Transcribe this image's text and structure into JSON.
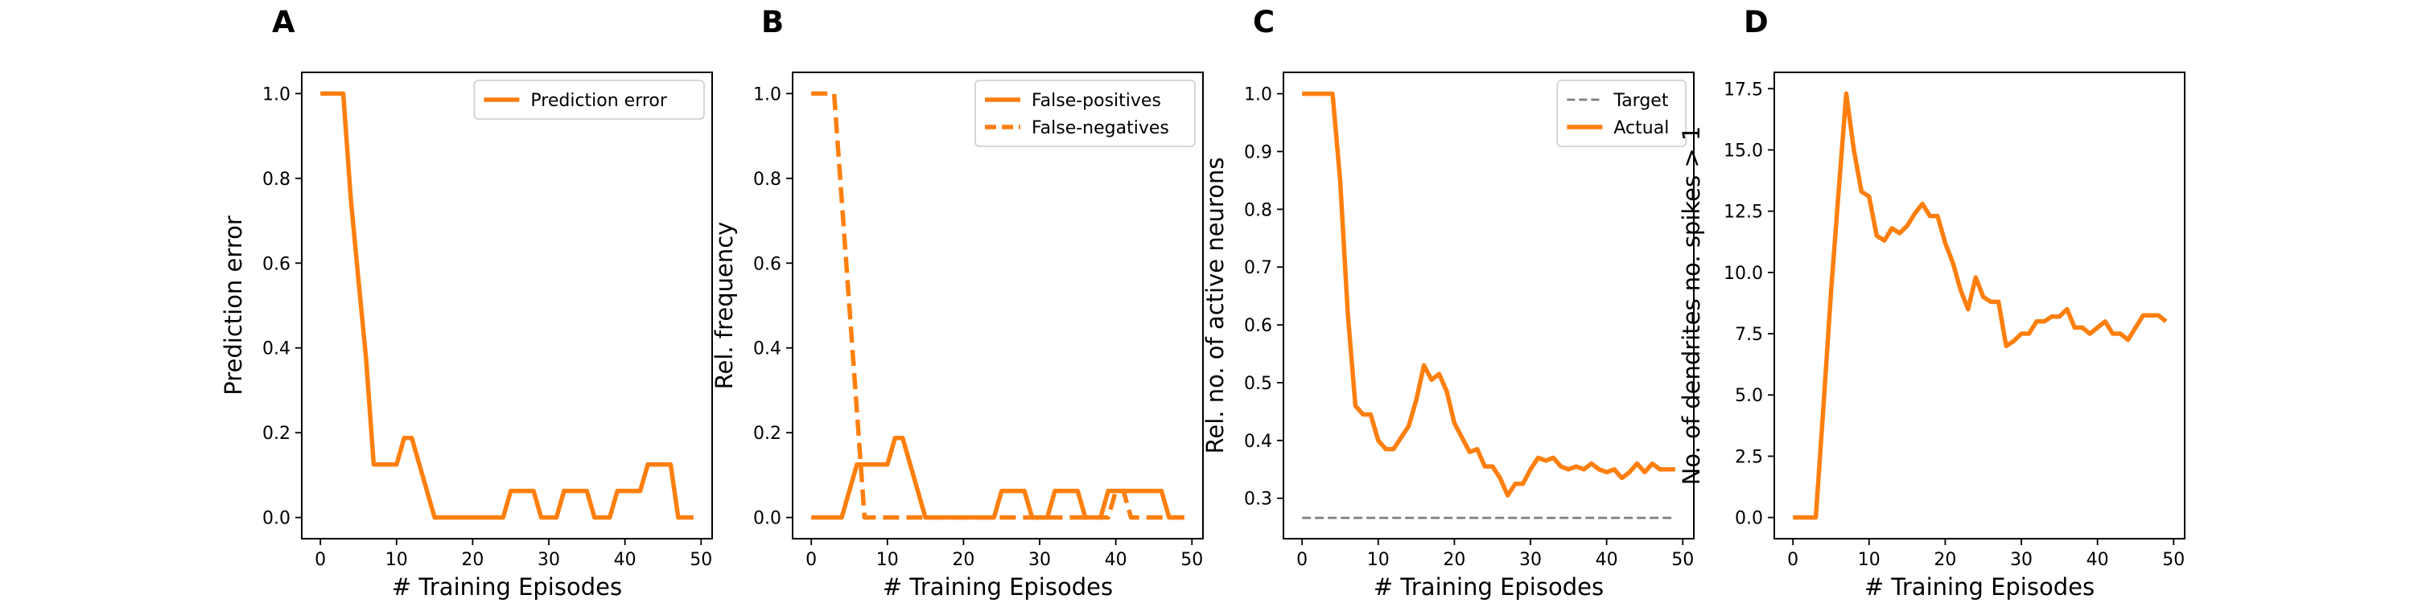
{
  "colors": {
    "orange": "#ff7f0e",
    "gray": "#7f7f7f"
  },
  "chart_data": [
    {
      "panel": "A",
      "type": "line",
      "xlabel": "# Training Episodes",
      "ylabel": "Prediction error",
      "xlim": [
        -2.45,
        51.45
      ],
      "ylim": [
        -0.05,
        1.05
      ],
      "xticks": [
        0,
        10,
        20,
        30,
        40,
        50
      ],
      "yticks": [
        0.0,
        0.2,
        0.4,
        0.6,
        0.8,
        1.0
      ],
      "ytick_labels": [
        "0.0",
        "0.2",
        "0.4",
        "0.6",
        "0.8",
        "1.0"
      ],
      "legend_position": "upper right",
      "series": [
        {
          "name": "Prediction error",
          "style": "solid",
          "color": "#ff7f0e",
          "x": [
            0,
            1,
            2,
            3,
            4,
            5,
            6,
            7,
            8,
            9,
            10,
            11,
            12,
            13,
            14,
            15,
            16,
            17,
            18,
            19,
            20,
            21,
            22,
            23,
            24,
            25,
            26,
            27,
            28,
            29,
            30,
            31,
            32,
            33,
            34,
            35,
            36,
            37,
            38,
            39,
            40,
            41,
            42,
            43,
            44,
            45,
            46,
            47,
            48,
            49
          ],
          "y": [
            1,
            1,
            1,
            1,
            0.75,
            0.56,
            0.375,
            0.125,
            0.125,
            0.125,
            0.125,
            0.1875,
            0.1875,
            0.125,
            0.0625,
            0,
            0,
            0,
            0,
            0,
            0,
            0,
            0,
            0,
            0,
            0.0625,
            0.0625,
            0.0625,
            0.0625,
            0,
            0,
            0,
            0.0625,
            0.0625,
            0.0625,
            0.0625,
            0,
            0,
            0,
            0.0625,
            0.0625,
            0.0625,
            0.0625,
            0.125,
            0.125,
            0.125,
            0.125,
            0,
            0,
            0
          ]
        }
      ]
    },
    {
      "panel": "B",
      "type": "line",
      "xlabel": "# Training Episodes",
      "ylabel": "Rel. frequency",
      "xlim": [
        -2.45,
        51.45
      ],
      "ylim": [
        -0.05,
        1.05
      ],
      "xticks": [
        0,
        10,
        20,
        30,
        40,
        50
      ],
      "yticks": [
        0.0,
        0.2,
        0.4,
        0.6,
        0.8,
        1.0
      ],
      "ytick_labels": [
        "0.0",
        "0.2",
        "0.4",
        "0.6",
        "0.8",
        "1.0"
      ],
      "legend_position": "upper right",
      "series": [
        {
          "name": "False-positives",
          "style": "solid",
          "color": "#ff7f0e",
          "x": [
            0,
            1,
            2,
            3,
            4,
            5,
            6,
            7,
            8,
            9,
            10,
            11,
            12,
            13,
            14,
            15,
            16,
            17,
            18,
            19,
            20,
            21,
            22,
            23,
            24,
            25,
            26,
            27,
            28,
            29,
            30,
            31,
            32,
            33,
            34,
            35,
            36,
            37,
            38,
            39,
            40,
            41,
            42,
            43,
            44,
            45,
            46,
            47,
            48,
            49
          ],
          "y": [
            0,
            0,
            0,
            0,
            0,
            0.0625,
            0.125,
            0.125,
            0.125,
            0.125,
            0.125,
            0.1875,
            0.1875,
            0.125,
            0.0625,
            0,
            0,
            0,
            0,
            0,
            0,
            0,
            0,
            0,
            0,
            0.0625,
            0.0625,
            0.0625,
            0.0625,
            0,
            0,
            0,
            0.0625,
            0.0625,
            0.0625,
            0.0625,
            0,
            0,
            0,
            0.0625,
            0.0625,
            0.0625,
            0.0625,
            0.0625,
            0.0625,
            0.0625,
            0.0625,
            0,
            0,
            0
          ]
        },
        {
          "name": "False-negatives",
          "style": "dashed",
          "color": "#ff7f0e",
          "x": [
            0,
            1,
            2,
            3,
            4,
            5,
            6,
            7,
            8,
            9,
            10,
            11,
            12,
            13,
            14,
            15,
            16,
            17,
            18,
            19,
            20,
            21,
            22,
            23,
            24,
            25,
            26,
            27,
            28,
            29,
            30,
            31,
            32,
            33,
            34,
            35,
            36,
            37,
            38,
            39,
            40,
            41,
            42,
            43,
            44,
            45,
            46,
            47,
            48,
            49
          ],
          "y": [
            1,
            1,
            1,
            1,
            0.75,
            0.5,
            0.25,
            0,
            0,
            0,
            0,
            0,
            0,
            0,
            0,
            0,
            0,
            0,
            0,
            0,
            0,
            0,
            0,
            0,
            0,
            0,
            0,
            0,
            0,
            0,
            0,
            0,
            0,
            0,
            0,
            0,
            0,
            0,
            0,
            0,
            0.0625,
            0.0625,
            0,
            0,
            0,
            0,
            0,
            0,
            0,
            0
          ]
        }
      ]
    },
    {
      "panel": "C",
      "type": "line",
      "xlabel": "# Training Episodes",
      "ylabel": "Rel. no. of active neurons",
      "xlim": [
        -2.45,
        51.45
      ],
      "ylim": [
        0.23,
        1.037
      ],
      "xticks": [
        0,
        10,
        20,
        30,
        40,
        50
      ],
      "yticks": [
        0.3,
        0.4,
        0.5,
        0.6,
        0.7,
        0.8,
        0.9,
        1.0
      ],
      "ytick_labels": [
        "0.3",
        "0.4",
        "0.5",
        "0.6",
        "0.7",
        "0.8",
        "0.9",
        "1.0"
      ],
      "legend_position": "upper right",
      "series": [
        {
          "name": "Target",
          "style": "dashed-thin",
          "color": "#7f7f7f",
          "x": [
            0,
            49
          ],
          "y": [
            0.266,
            0.266
          ]
        },
        {
          "name": "Actual",
          "style": "solid",
          "color": "#ff7f0e",
          "x": [
            0,
            1,
            2,
            3,
            4,
            5,
            6,
            7,
            8,
            9,
            10,
            11,
            12,
            13,
            14,
            15,
            16,
            17,
            18,
            19,
            20,
            21,
            22,
            23,
            24,
            25,
            26,
            27,
            28,
            29,
            30,
            31,
            32,
            33,
            34,
            35,
            36,
            37,
            38,
            39,
            40,
            41,
            42,
            43,
            44,
            45,
            46,
            47,
            48,
            49
          ],
          "y": [
            1,
            1,
            1,
            1,
            1,
            0.85,
            0.62,
            0.46,
            0.445,
            0.445,
            0.4,
            0.385,
            0.385,
            0.405,
            0.425,
            0.47,
            0.53,
            0.505,
            0.515,
            0.485,
            0.43,
            0.405,
            0.38,
            0.385,
            0.355,
            0.355,
            0.335,
            0.305,
            0.325,
            0.325,
            0.35,
            0.37,
            0.365,
            0.37,
            0.355,
            0.35,
            0.355,
            0.35,
            0.36,
            0.35,
            0.345,
            0.35,
            0.335,
            0.345,
            0.36,
            0.345,
            0.36,
            0.35,
            0.35,
            0.35
          ]
        }
      ]
    },
    {
      "panel": "D",
      "type": "line",
      "xlabel": "# Training Episodes",
      "ylabel": "No. of dendrites no. spikes > 1",
      "xlim": [
        -2.45,
        51.45
      ],
      "ylim": [
        -0.865,
        18.165
      ],
      "xticks": [
        0,
        10,
        20,
        30,
        40,
        50
      ],
      "yticks": [
        0.0,
        2.5,
        5.0,
        7.5,
        10.0,
        12.5,
        15.0,
        17.5
      ],
      "ytick_labels": [
        "0.0",
        "2.5",
        "5.0",
        "7.5",
        "10.0",
        "12.5",
        "15.0",
        "17.5"
      ],
      "legend_position": "none",
      "series": [
        {
          "name": "",
          "style": "solid",
          "color": "#ff7f0e",
          "x": [
            0,
            1,
            2,
            3,
            4,
            5,
            6,
            7,
            8,
            9,
            10,
            11,
            12,
            13,
            14,
            15,
            16,
            17,
            18,
            19,
            20,
            21,
            22,
            23,
            24,
            25,
            26,
            27,
            28,
            29,
            30,
            31,
            32,
            33,
            34,
            35,
            36,
            37,
            38,
            39,
            40,
            41,
            42,
            43,
            44,
            45,
            46,
            47,
            48,
            49
          ],
          "y": [
            0,
            0,
            0,
            0,
            4.5,
            9.2,
            13.3,
            17.3,
            15,
            13.3,
            13.1,
            11.5,
            11.3,
            11.8,
            11.6,
            11.9,
            12.4,
            12.8,
            12.3,
            12.3,
            11.2,
            10.4,
            9.3,
            8.5,
            9.8,
            9,
            8.8,
            8.8,
            7,
            7.2,
            7.5,
            7.5,
            8,
            8,
            8.2,
            8.2,
            8.5,
            7.75,
            7.75,
            7.5,
            7.75,
            8,
            7.5,
            7.5,
            7.25,
            7.75,
            8.25,
            8.25,
            8.25,
            8
          ]
        }
      ]
    }
  ]
}
